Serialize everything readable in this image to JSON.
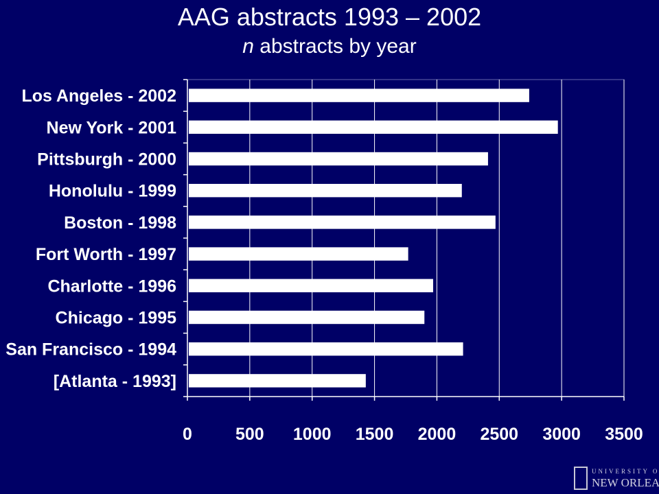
{
  "header": {
    "title": "AAG abstracts 1993 – 2002",
    "subtitle_italic": "n",
    "subtitle_rest": " abstracts by year"
  },
  "logo": {
    "line1": "UNIVERSITY OF",
    "line2": "NEW ORLEANS"
  },
  "colors": {
    "background": "#000066",
    "bar": "#ffffff",
    "gridline": "#ffffff"
  },
  "chart_data": {
    "type": "bar",
    "orientation": "horizontal",
    "categories": [
      "Los Angeles - 2002",
      "New York - 2001",
      "Pittsburgh - 2000",
      "Honolulu - 1999",
      "Boston - 1998",
      "Fort Worth - 1997",
      "Charlotte - 1996",
      "Chicago - 1995",
      "San Francisco - 1994",
      "[Atlanta - 1993]"
    ],
    "values": [
      2740,
      2970,
      2410,
      2200,
      2470,
      1770,
      1970,
      1900,
      2210,
      1430
    ],
    "xlim": [
      0,
      3500
    ],
    "xticks": [
      0,
      500,
      1000,
      1500,
      2000,
      2500,
      3000,
      3500
    ],
    "grid": true,
    "legend": "none"
  }
}
